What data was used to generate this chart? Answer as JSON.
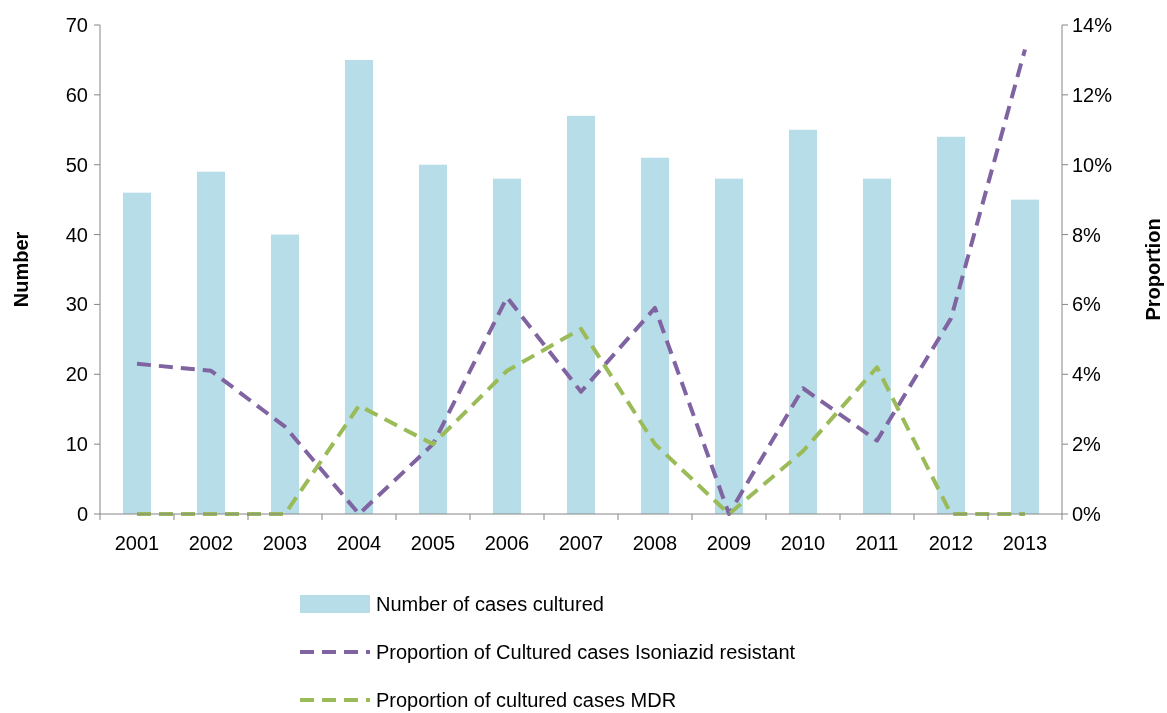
{
  "chart_data": {
    "type": "bar",
    "categories": [
      "2001",
      "2002",
      "2003",
      "2004",
      "2005",
      "2006",
      "2007",
      "2008",
      "2009",
      "2010",
      "2011",
      "2012",
      "2013"
    ],
    "ylabel": "Number",
    "y2label": "Proportion",
    "ylim": [
      0,
      70
    ],
    "yticks": [
      0,
      10,
      20,
      30,
      40,
      50,
      60,
      70
    ],
    "y2lim": [
      0,
      14
    ],
    "y2ticks": [
      {
        "value": 0,
        "label": "0%"
      },
      {
        "value": 2,
        "label": "2%"
      },
      {
        "value": 4,
        "label": "4%"
      },
      {
        "value": 6,
        "label": "6%"
      },
      {
        "value": 8,
        "label": "8%"
      },
      {
        "value": 10,
        "label": "10%"
      },
      {
        "value": 12,
        "label": "12%"
      },
      {
        "value": 14,
        "label": "14%"
      }
    ],
    "legend": "bottom",
    "grid": false,
    "series": [
      {
        "name": "Number of cases cultured",
        "color": "#b7dde8",
        "values": [
          46,
          49,
          40,
          65,
          50,
          48,
          57,
          51,
          48,
          55,
          48,
          54,
          45
        ]
      },
      {
        "name": "Proportion of Cultured cases Isoniazid resistant",
        "type": "line",
        "axis": "y2",
        "line_style": "dashed",
        "color": "#8064a2",
        "values": [
          4.3,
          4.1,
          2.5,
          0,
          2.0,
          6.2,
          3.5,
          5.9,
          0,
          3.6,
          2.1,
          5.6,
          13.3
        ]
      },
      {
        "name": "Proportion of cultured cases MDR",
        "type": "line",
        "axis": "y2",
        "line_style": "dashed",
        "color": "#9bbb59",
        "values": [
          0,
          0,
          0,
          3.1,
          2.0,
          4.1,
          5.3,
          2.0,
          0,
          1.8,
          4.2,
          0,
          0
        ]
      }
    ]
  }
}
